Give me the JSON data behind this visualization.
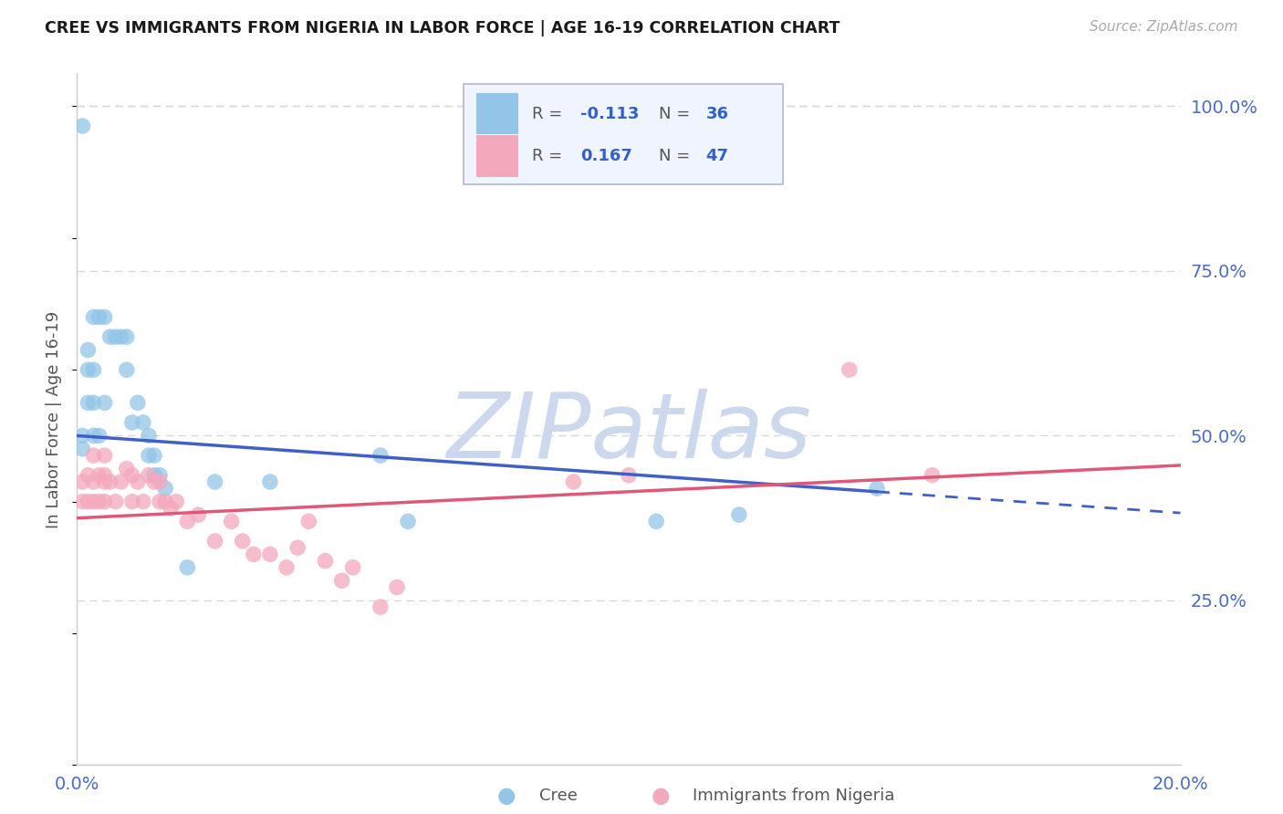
{
  "title": "CREE VS IMMIGRANTS FROM NIGERIA IN LABOR FORCE | AGE 16-19 CORRELATION CHART",
  "source": "Source: ZipAtlas.com",
  "ylabel": "In Labor Force | Age 16-19",
  "xlim": [
    0.0,
    0.2
  ],
  "ylim": [
    0.0,
    1.05
  ],
  "xtick_positions": [
    0.0,
    0.05,
    0.1,
    0.15,
    0.2
  ],
  "xticklabels": [
    "0.0%",
    "",
    "",
    "",
    "20.0%"
  ],
  "ytick_positions": [
    0.0,
    0.25,
    0.5,
    0.75,
    1.0
  ],
  "ytick_labels": [
    "",
    "25.0%",
    "50.0%",
    "75.0%",
    "100.0%"
  ],
  "cree_R": -0.113,
  "cree_N": 36,
  "nigeria_R": 0.167,
  "nigeria_N": 47,
  "cree_color": "#92c5e8",
  "nigeria_color": "#f4a8bc",
  "cree_line_color": "#4060c8",
  "nigeria_line_color": "#e05878",
  "watermark": "ZIPatlas",
  "watermark_color": "#ccd8ee",
  "cree_line_x0": 0.0,
  "cree_line_y0": 0.5,
  "cree_line_x1": 0.145,
  "cree_line_y1": 0.415,
  "nigeria_line_x0": 0.0,
  "nigeria_line_y0": 0.375,
  "nigeria_line_x1": 0.2,
  "nigeria_line_y1": 0.455,
  "cree_x": [
    0.001,
    0.001,
    0.001,
    0.002,
    0.002,
    0.002,
    0.003,
    0.003,
    0.003,
    0.003,
    0.004,
    0.004,
    0.005,
    0.005,
    0.006,
    0.007,
    0.008,
    0.009,
    0.009,
    0.01,
    0.011,
    0.012,
    0.013,
    0.013,
    0.014,
    0.014,
    0.015,
    0.016,
    0.025,
    0.035,
    0.055,
    0.06,
    0.105,
    0.12,
    0.145,
    0.02
  ],
  "cree_y": [
    0.97,
    0.48,
    0.5,
    0.6,
    0.63,
    0.55,
    0.55,
    0.6,
    0.68,
    0.5,
    0.5,
    0.68,
    0.55,
    0.68,
    0.65,
    0.65,
    0.65,
    0.65,
    0.6,
    0.52,
    0.55,
    0.52,
    0.5,
    0.47,
    0.47,
    0.44,
    0.44,
    0.42,
    0.43,
    0.43,
    0.47,
    0.37,
    0.37,
    0.38,
    0.42,
    0.3
  ],
  "nigeria_x": [
    0.001,
    0.001,
    0.002,
    0.002,
    0.003,
    0.003,
    0.003,
    0.004,
    0.004,
    0.005,
    0.005,
    0.005,
    0.005,
    0.006,
    0.007,
    0.008,
    0.009,
    0.01,
    0.01,
    0.011,
    0.012,
    0.013,
    0.014,
    0.015,
    0.015,
    0.016,
    0.017,
    0.018,
    0.02,
    0.022,
    0.025,
    0.028,
    0.03,
    0.032,
    0.035,
    0.038,
    0.04,
    0.042,
    0.045,
    0.048,
    0.05,
    0.055,
    0.058,
    0.09,
    0.1,
    0.14,
    0.155
  ],
  "nigeria_y": [
    0.4,
    0.43,
    0.4,
    0.44,
    0.4,
    0.43,
    0.47,
    0.4,
    0.44,
    0.4,
    0.43,
    0.44,
    0.47,
    0.43,
    0.4,
    0.43,
    0.45,
    0.4,
    0.44,
    0.43,
    0.4,
    0.44,
    0.43,
    0.4,
    0.43,
    0.4,
    0.39,
    0.4,
    0.37,
    0.38,
    0.34,
    0.37,
    0.34,
    0.32,
    0.32,
    0.3,
    0.33,
    0.37,
    0.31,
    0.28,
    0.3,
    0.24,
    0.27,
    0.43,
    0.44,
    0.6,
    0.44
  ],
  "grid_color": "#d8d8d8",
  "bg_color": "#ffffff",
  "legend_box_color": "#f0f4ff",
  "legend_border_color": "#b0b8d0"
}
